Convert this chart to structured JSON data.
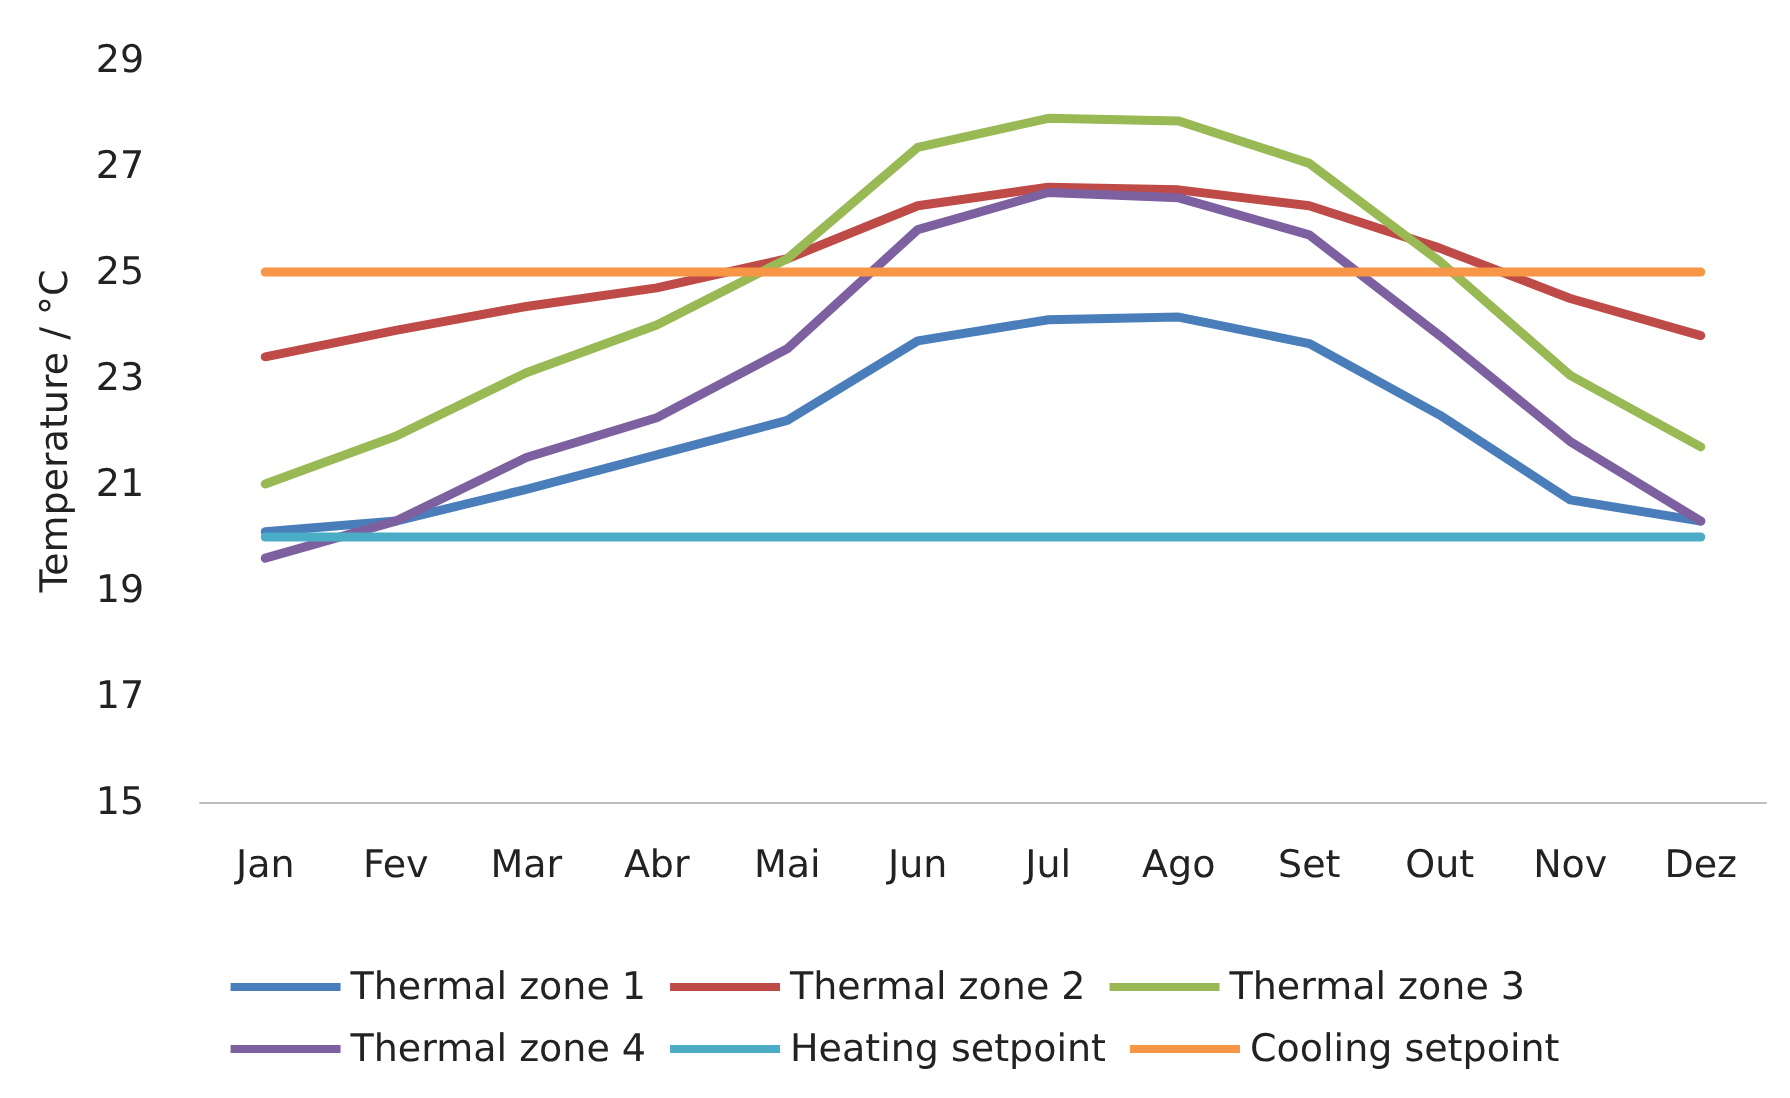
{
  "chart_data": {
    "type": "line",
    "ylabel": "Temperature / °C",
    "categories": [
      "Jan",
      "Fev",
      "Mar",
      "Abr",
      "Mai",
      "Jun",
      "Jul",
      "Ago",
      "Set",
      "Out",
      "Nov",
      "Dez"
    ],
    "ylim": [
      15,
      29
    ],
    "yticks": [
      15,
      17,
      19,
      21,
      23,
      25,
      27,
      29
    ],
    "grid": false,
    "legend": "bottom",
    "marker": "none",
    "line_style": "solid",
    "series": [
      {
        "name": "Thermal zone 1",
        "color": "#4a7ebb",
        "values": [
          20.1,
          20.3,
          20.9,
          21.55,
          22.2,
          23.7,
          24.1,
          24.15,
          23.65,
          22.3,
          20.7,
          20.3
        ]
      },
      {
        "name": "Thermal zone 2",
        "color": "#be4b48",
        "values": [
          23.4,
          23.9,
          24.35,
          24.7,
          25.25,
          26.25,
          26.6,
          26.55,
          26.25,
          25.45,
          24.5,
          23.8
        ]
      },
      {
        "name": "Thermal zone 3",
        "color": "#98b954",
        "values": [
          21.0,
          21.9,
          23.1,
          24.0,
          25.25,
          27.35,
          27.9,
          27.85,
          27.05,
          25.2,
          23.05,
          21.7
        ]
      },
      {
        "name": "Thermal zone 4",
        "color": "#7d60a0",
        "values": [
          19.6,
          20.3,
          21.5,
          22.25,
          23.55,
          25.8,
          26.5,
          26.4,
          25.7,
          23.8,
          21.8,
          20.3
        ]
      },
      {
        "name": "Heating setpoint",
        "color": "#4bacc6",
        "values": [
          20,
          20,
          20,
          20,
          20,
          20,
          20,
          20,
          20,
          20,
          20,
          20
        ]
      },
      {
        "name": "Cooling setpoint",
        "color": "#f79646",
        "values": [
          25,
          25,
          25,
          25,
          25,
          25,
          25,
          25,
          25,
          25,
          25,
          25
        ]
      }
    ]
  }
}
